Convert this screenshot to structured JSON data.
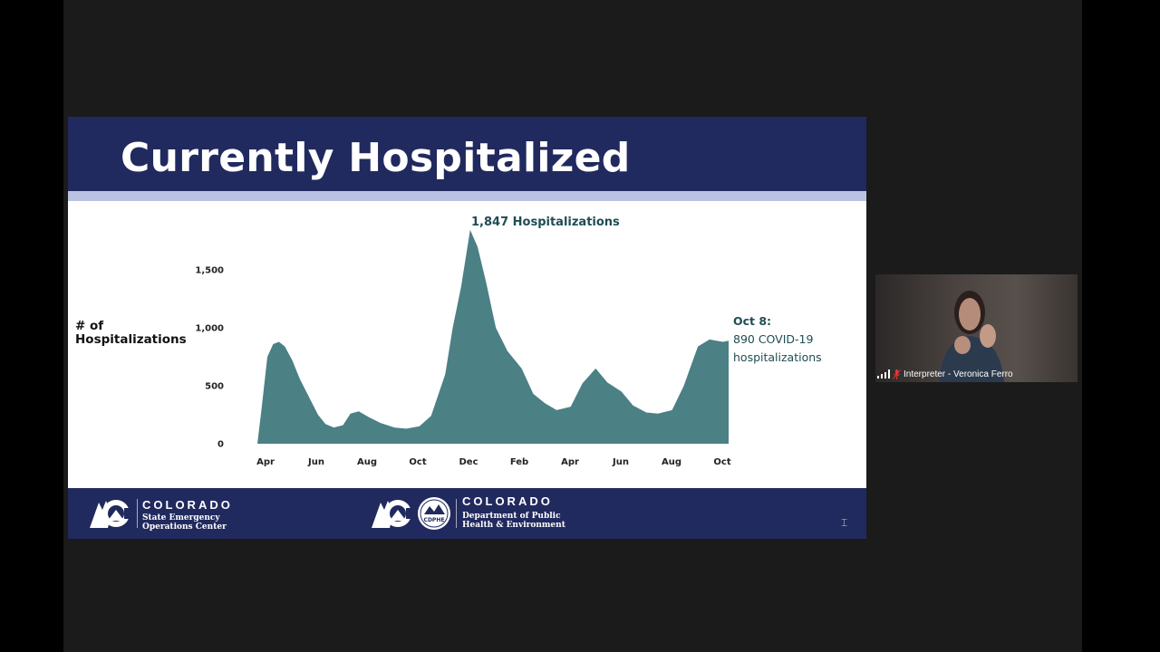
{
  "slide": {
    "title": "Currently Hospitalized",
    "y_axis_label_line1": "# of",
    "y_axis_label_line2": "Hospitalizations",
    "peak_label": "1,847 Hospitalizations",
    "annotation_date": "Oct 8:",
    "annotation_line1": "890 COVID-19",
    "annotation_line2": "hospitalizations"
  },
  "chart_data": {
    "type": "area",
    "ylabel": "# of Hospitalizations",
    "yticks": [
      "0",
      "500",
      "1,000",
      "1,500"
    ],
    "ytick_values": [
      0,
      500,
      1000,
      1500
    ],
    "xticks": [
      "Apr",
      "Jun",
      "Aug",
      "Oct",
      "Dec",
      "Feb",
      "Apr",
      "Jun",
      "Aug",
      "Oct"
    ],
    "x": [
      "2020-03-20",
      "2020-03-25",
      "2020-04-01",
      "2020-04-08",
      "2020-04-15",
      "2020-04-22",
      "2020-05-01",
      "2020-05-10",
      "2020-05-20",
      "2020-06-01",
      "2020-06-10",
      "2020-06-20",
      "2020-07-01",
      "2020-07-10",
      "2020-07-20",
      "2020-08-01",
      "2020-08-15",
      "2020-09-01",
      "2020-09-15",
      "2020-10-01",
      "2020-10-15",
      "2020-11-01",
      "2020-11-10",
      "2020-11-20",
      "2020-12-01",
      "2020-12-10",
      "2020-12-20",
      "2021-01-01",
      "2021-01-15",
      "2021-02-01",
      "2021-02-15",
      "2021-03-01",
      "2021-03-15",
      "2021-04-01",
      "2021-04-15",
      "2021-05-01",
      "2021-05-15",
      "2021-06-01",
      "2021-06-15",
      "2021-07-01",
      "2021-07-15",
      "2021-08-01",
      "2021-08-15",
      "2021-09-01",
      "2021-09-15",
      "2021-10-01",
      "2021-10-08"
    ],
    "values": [
      0,
      300,
      750,
      860,
      880,
      840,
      720,
      560,
      420,
      250,
      170,
      140,
      160,
      260,
      280,
      230,
      180,
      140,
      130,
      150,
      240,
      600,
      1000,
      1350,
      1847,
      1700,
      1400,
      1000,
      800,
      650,
      430,
      350,
      290,
      320,
      520,
      650,
      530,
      450,
      330,
      270,
      260,
      290,
      500,
      840,
      900,
      880,
      890
    ],
    "peak": {
      "date": "2020-12-01",
      "value": 1847
    },
    "latest": {
      "date": "2021-10-08",
      "value": 890
    },
    "fill_color": "#4b8085",
    "ylim": [
      0,
      1900
    ],
    "grid": false,
    "legend": "none"
  },
  "footer": {
    "left_org": "COLORADO",
    "left_sub1": "State Emergency",
    "left_sub2": "Operations Center",
    "right_org": "COLORADO",
    "right_badge": "CDPHE",
    "right_sub1": "Department of Public",
    "right_sub2": "Health & Environment"
  },
  "participant": {
    "name": "Interpreter - Veronica Ferro",
    "signal_icon": "signal-bars-icon",
    "mic_icon": "mic-muted-icon"
  },
  "colors": {
    "header": "#212a5e",
    "stripe": "#b9c2e2",
    "accent_text": "#1e4d52"
  }
}
